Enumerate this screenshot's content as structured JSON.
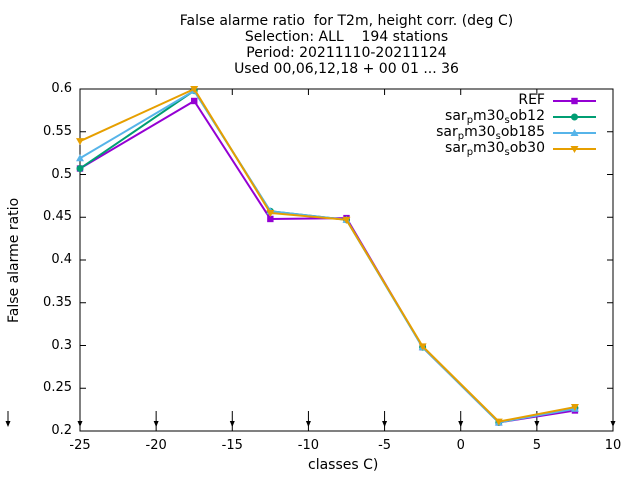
{
  "chart_data": {
    "type": "line",
    "title_lines": [
      "False alarme ratio  for T2m, height corr. (deg C)",
      "Selection: ALL    194 stations",
      "Period: 20211110-20211124",
      "Used 00,06,12,18 + 00 01 ... 36"
    ],
    "xlabel": "classes C)",
    "ylabel": "False alarme ratio",
    "xlim": [
      -25,
      10
    ],
    "ylim": [
      0.2,
      0.6
    ],
    "xticks": [
      "-25",
      "-20",
      "-15",
      "-10",
      "-5",
      "0",
      "5",
      "10"
    ],
    "yticks": [
      "0.2",
      "0.25",
      "0.3",
      "0.35",
      "0.4",
      "0.45",
      "0.5",
      "0.55",
      "0.6"
    ],
    "grid": false,
    "legend_position": "top-right",
    "x": [
      -25,
      -17.5,
      -12.5,
      -7.5,
      -2.5,
      2.5,
      7.5
    ],
    "series": [
      {
        "name": "REF",
        "legend_parts": [
          "REF"
        ],
        "color": "#9400d3",
        "marker": "square",
        "values": [
          0.507,
          0.586,
          0.448,
          0.449,
          0.298,
          0.21,
          0.224
        ]
      },
      {
        "name": "sar_pm30_sob12",
        "legend_parts": [
          "sar",
          "p",
          "m30",
          "s",
          "ob12"
        ],
        "color": "#009e73",
        "marker": "circle",
        "values": [
          0.507,
          0.598,
          0.457,
          0.447,
          0.298,
          0.21,
          0.227
        ]
      },
      {
        "name": "sar_pm30_sob185",
        "legend_parts": [
          "sar",
          "p",
          "m30",
          "s",
          "ob185"
        ],
        "color": "#56b4e9",
        "marker": "triangle",
        "values": [
          0.519,
          0.598,
          0.457,
          0.447,
          0.298,
          0.21,
          0.226
        ]
      },
      {
        "name": "sar_pm30_sob30",
        "legend_parts": [
          "sar",
          "p",
          "m30",
          "s",
          "ob30"
        ],
        "color": "#e69f00",
        "marker": "triangle-down",
        "values": [
          0.539,
          0.6,
          0.455,
          0.447,
          0.299,
          0.211,
          0.228
        ]
      }
    ],
    "count_markers_x": [
      -25,
      -20,
      -15,
      -10,
      -5,
      0,
      5,
      10
    ]
  }
}
